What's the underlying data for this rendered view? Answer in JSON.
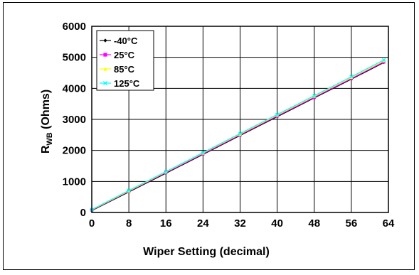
{
  "chart_data": {
    "type": "line",
    "xlabel": "Wiper Setting (decimal)",
    "ylabel_main": "R",
    "ylabel_sub": "WB",
    "ylabel_rest": " (Ohms)",
    "xlim": [
      0,
      64
    ],
    "ylim": [
      0,
      6000
    ],
    "xticks": [
      "0",
      "8",
      "16",
      "24",
      "32",
      "40",
      "48",
      "56",
      "64"
    ],
    "yticks": [
      "0",
      "1000",
      "2000",
      "3000",
      "4000",
      "5000",
      "6000"
    ],
    "grid": true,
    "legend_position": "top-left",
    "x": [
      0,
      8,
      16,
      24,
      32,
      40,
      48,
      56,
      63
    ],
    "series": [
      {
        "name": "-40°C",
        "color": "#000000",
        "marker": "diamond",
        "values": [
          60,
          660,
          1265,
          1870,
          2480,
          3085,
          3690,
          4295,
          4830
        ]
      },
      {
        "name": "25°C",
        "color": "#ff00ff",
        "marker": "square",
        "values": [
          75,
          680,
          1285,
          1890,
          2500,
          3105,
          3710,
          4315,
          4850
        ]
      },
      {
        "name": "85°C",
        "color": "#ffff00",
        "marker": "triangle",
        "values": [
          85,
          695,
          1305,
          1915,
          2525,
          3135,
          3745,
          4355,
          4890
        ]
      },
      {
        "name": "125°C",
        "color": "#00ffff",
        "marker": "x",
        "values": [
          95,
          710,
          1320,
          1930,
          2545,
          3155,
          3765,
          4375,
          4915
        ]
      }
    ]
  }
}
